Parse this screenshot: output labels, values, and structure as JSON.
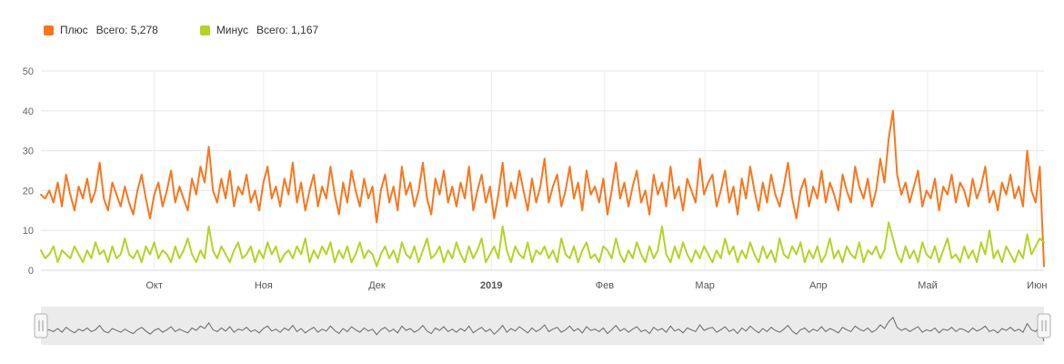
{
  "legend": {
    "items": [
      {
        "label": "Плюс",
        "total_label": "Всего: 5,278",
        "color": "#f9761d"
      },
      {
        "label": "Минус",
        "total_label": "Всего: 1,167",
        "color": "#b5d327"
      }
    ]
  },
  "chart_data": {
    "type": "line",
    "title": "",
    "xlabel": "",
    "ylabel": "",
    "ylim": [
      0,
      50
    ],
    "y_ticks": [
      0,
      10,
      20,
      30,
      40,
      50
    ],
    "grid": true,
    "legend_position": "top-left",
    "x_ticks": [
      {
        "label": "Окт",
        "pos": 0.113,
        "bold": false
      },
      {
        "label": "Ноя",
        "pos": 0.222,
        "bold": false
      },
      {
        "label": "Дек",
        "pos": 0.335,
        "bold": false
      },
      {
        "label": "2019",
        "pos": 0.449,
        "bold": true
      },
      {
        "label": "Фев",
        "pos": 0.562,
        "bold": false
      },
      {
        "label": "Мар",
        "pos": 0.662,
        "bold": false
      },
      {
        "label": "Апр",
        "pos": 0.775,
        "bold": false
      },
      {
        "label": "Май",
        "pos": 0.884,
        "bold": false
      },
      {
        "label": "Июн",
        "pos": 0.993,
        "bold": false
      }
    ],
    "series": [
      {
        "name": "Плюс",
        "color": "#f9761d",
        "total": 5278,
        "values": [
          19,
          18,
          20,
          17,
          22,
          16,
          24,
          19,
          15,
          21,
          18,
          23,
          17,
          20,
          27,
          18,
          15,
          22,
          19,
          16,
          21,
          17,
          14,
          20,
          24,
          18,
          13,
          19,
          22,
          16,
          20,
          25,
          17,
          21,
          18,
          15,
          23,
          19,
          26,
          22,
          31,
          20,
          17,
          23,
          18,
          25,
          16,
          21,
          19,
          24,
          17,
          20,
          15,
          22,
          26,
          18,
          21,
          16,
          23,
          19,
          27,
          17,
          22,
          15,
          20,
          24,
          16,
          21,
          18,
          26,
          19,
          14,
          22,
          17,
          25,
          20,
          16,
          23,
          18,
          21,
          12,
          20,
          24,
          17,
          21,
          15,
          26,
          19,
          22,
          16,
          20,
          27,
          18,
          14,
          23,
          19,
          25,
          17,
          21,
          16,
          22,
          18,
          26,
          15,
          20,
          24,
          17,
          21,
          13,
          19,
          27,
          16,
          22,
          18,
          25,
          20,
          15,
          23,
          17,
          21,
          28,
          17,
          21,
          24,
          16,
          20,
          26,
          18,
          22,
          15,
          25,
          19,
          21,
          17,
          23,
          14,
          20,
          27,
          18,
          22,
          16,
          21,
          25,
          17,
          20,
          14,
          24,
          19,
          22,
          16,
          26,
          18,
          21,
          15,
          23,
          20,
          17,
          28,
          19,
          22,
          24,
          16,
          20,
          25,
          17,
          21,
          14,
          23,
          18,
          26,
          20,
          15,
          22,
          17,
          24,
          19,
          16,
          21,
          27,
          18,
          13,
          20,
          23,
          16,
          21,
          18,
          25,
          17,
          22,
          19,
          15,
          24,
          20,
          17,
          26,
          21,
          18,
          23,
          16,
          20,
          28,
          22,
          33,
          40,
          24,
          19,
          22,
          17,
          21,
          25,
          16,
          20,
          18,
          23,
          15,
          21,
          19,
          24,
          17,
          22,
          20,
          16,
          23,
          18,
          21,
          26,
          17,
          20,
          15,
          22,
          19,
          24,
          18,
          21,
          16,
          30,
          20,
          17,
          26,
          1
        ]
      },
      {
        "name": "Минус",
        "color": "#b5d327",
        "total": 1167,
        "values": [
          5,
          3,
          4,
          6,
          2,
          5,
          4,
          3,
          6,
          4,
          2,
          5,
          3,
          7,
          4,
          5,
          2,
          6,
          3,
          4,
          8,
          4,
          3,
          5,
          2,
          6,
          4,
          7,
          3,
          5,
          4,
          2,
          6,
          3,
          5,
          8,
          4,
          2,
          5,
          3,
          11,
          5,
          3,
          6,
          4,
          2,
          5,
          7,
          3,
          4,
          6,
          2,
          5,
          3,
          7,
          4,
          6,
          2,
          4,
          5,
          3,
          6,
          4,
          8,
          2,
          5,
          3,
          6,
          4,
          7,
          2,
          5,
          3,
          6,
          2,
          4,
          7,
          3,
          5,
          4,
          1,
          4,
          6,
          3,
          5,
          2,
          7,
          4,
          3,
          6,
          2,
          5,
          8,
          3,
          4,
          6,
          2,
          5,
          3,
          7,
          4,
          2,
          6,
          3,
          5,
          8,
          2,
          4,
          6,
          3,
          11,
          5,
          2,
          6,
          4,
          3,
          7,
          2,
          5,
          4,
          6,
          3,
          5,
          2,
          8,
          4,
          3,
          6,
          2,
          5,
          7,
          3,
          4,
          2,
          6,
          5,
          3,
          8,
          4,
          2,
          5,
          3,
          7,
          4,
          2,
          6,
          3,
          5,
          11,
          4,
          2,
          6,
          3,
          7,
          4,
          2,
          5,
          3,
          6,
          4,
          2,
          5,
          3,
          8,
          4,
          6,
          2,
          5,
          3,
          7,
          4,
          2,
          6,
          3,
          5,
          2,
          8,
          4,
          3,
          6,
          4,
          7,
          2,
          5,
          3,
          6,
          2,
          4,
          8,
          3,
          5,
          2,
          6,
          4,
          3,
          7,
          2,
          5,
          4,
          6,
          3,
          5,
          12,
          8,
          4,
          2,
          6,
          3,
          5,
          2,
          7,
          4,
          3,
          6,
          2,
          5,
          8,
          3,
          4,
          2,
          6,
          3,
          5,
          2,
          7,
          4,
          10,
          3,
          5,
          2,
          6,
          4,
          2,
          5,
          3,
          9,
          4,
          6,
          8,
          7
        ]
      }
    ],
    "navigator": {
      "background": "#ebebeb",
      "line_color": "#666666",
      "handle_fill": "#f7f7f7",
      "handle_stroke": "#b0b0b0"
    },
    "axis_colors": {
      "grid": "#e6e6e6",
      "vgrid": "#ededed",
      "tick_text": "#666666",
      "baseline": "#d8d8d8"
    }
  }
}
